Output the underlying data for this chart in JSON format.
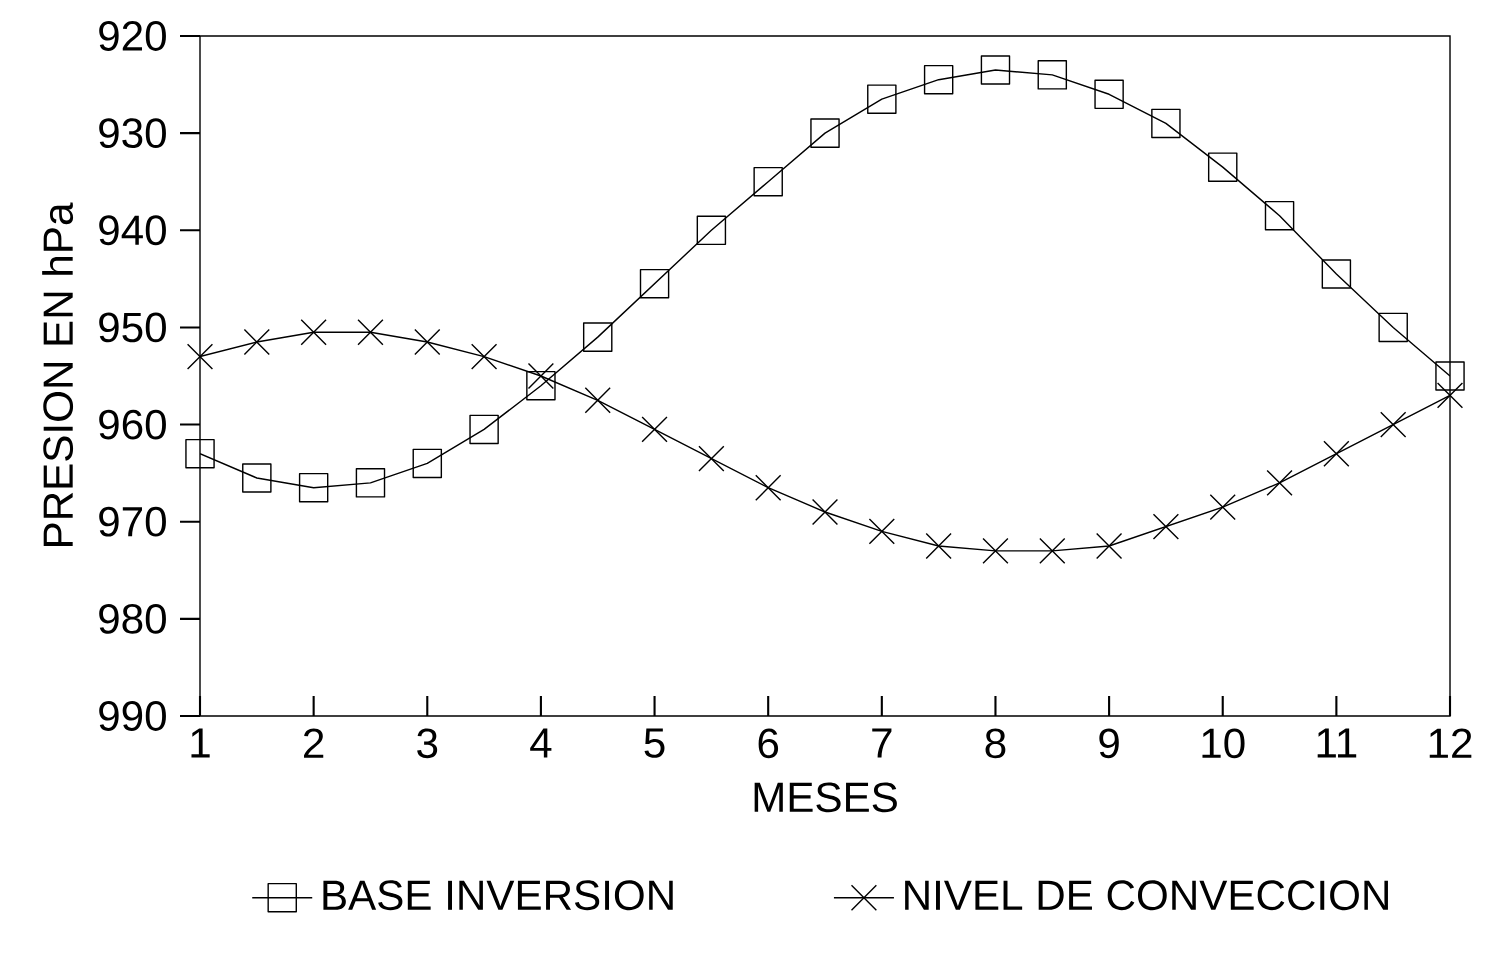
{
  "chart_data": {
    "type": "line",
    "xlabel": "MESES",
    "ylabel": "PRESION EN hPa",
    "x": [
      1,
      1.5,
      2,
      2.5,
      3,
      3.5,
      4,
      4.5,
      5,
      5.5,
      6,
      6.5,
      7,
      7.5,
      8,
      8.5,
      9,
      9.5,
      10,
      10.5,
      11,
      11.5,
      12
    ],
    "series": [
      {
        "name": "BASE INVERSION",
        "color": "#000000",
        "marker": "square",
        "values": [
          963,
          965.5,
          966.5,
          966,
          964,
          960.5,
          956,
          951,
          945.5,
          940,
          935,
          930,
          926.5,
          924.5,
          923.5,
          924,
          926,
          929,
          933.5,
          938.5,
          944.5,
          950,
          955
        ]
      },
      {
        "name": "NIVEL DE CONVECCION",
        "color": "#000000",
        "marker": "cross",
        "values": [
          953,
          951.5,
          950.5,
          950.5,
          951.5,
          953,
          955,
          957.5,
          960.5,
          963.5,
          966.5,
          969,
          971,
          972.5,
          973,
          973,
          972.5,
          970.5,
          968.5,
          966,
          963,
          960,
          957
        ]
      }
    ],
    "xlim": [
      1,
      12
    ],
    "ylim": [
      990,
      920
    ],
    "xticks": [
      1,
      2,
      3,
      4,
      5,
      6,
      7,
      8,
      9,
      10,
      11,
      12
    ],
    "yticks": [
      920,
      930,
      940,
      950,
      960,
      970,
      980,
      990
    ],
    "grid": false,
    "legend": "bottom",
    "line_style": "solid"
  }
}
